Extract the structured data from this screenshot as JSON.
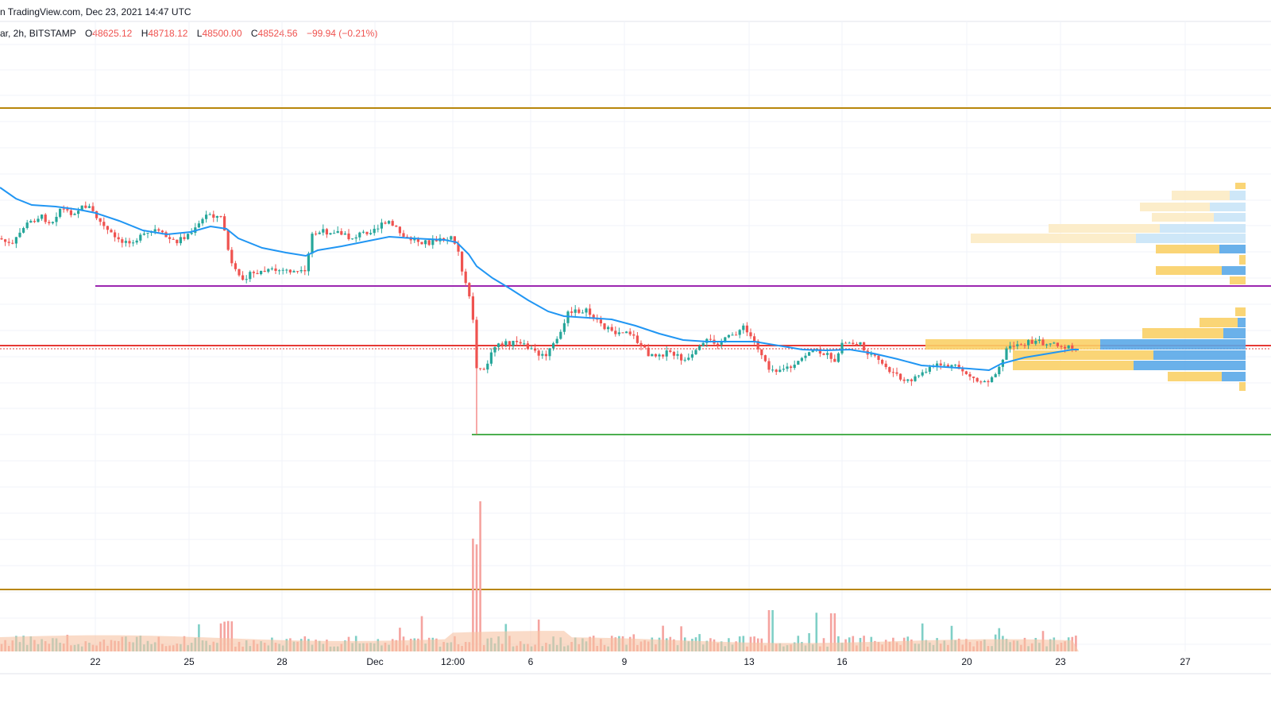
{
  "header": {
    "attribution": "n TradingView.com, Dec 23, 2021 14:47 UTC"
  },
  "legend": {
    "symbol": "ar, 2h, BITSTAMP",
    "open_label": "O",
    "open": "48625.12",
    "high_label": "H",
    "high": "48718.12",
    "low_label": "L",
    "low": "48500.00",
    "close_label": "C",
    "close": "48524.56",
    "change": "−99.94 (−0.21%)"
  },
  "colors": {
    "up": "#26a69a",
    "down": "#ef5350",
    "ma": "#2196f3",
    "level_gold": "#b8860b",
    "level_purple": "#9c27b0",
    "level_red": "#e53935",
    "level_green": "#4caf50",
    "vol_up": "#7fcfc6",
    "vol_down": "#f5a39f",
    "vol_ma": "#f7c3a3",
    "vp_yellow": "#f9d067",
    "vp_yellow_light": "#fcebc4",
    "vp_blue": "#5aa8e8",
    "vp_blue_light": "#c9e4f7"
  },
  "chart_data": {
    "type": "candlestick",
    "x_axis": {
      "tick_labels": [
        "22",
        "25",
        "28",
        "Dec",
        "12:00",
        "6",
        "9",
        "13",
        "16",
        "20",
        "23",
        "27"
      ]
    },
    "price_levels": [
      {
        "name": "resistance-high",
        "color": "gold"
      },
      {
        "name": "support-purple",
        "color": "purple"
      },
      {
        "name": "current-price",
        "color": "red"
      },
      {
        "name": "support-green",
        "color": "green"
      },
      {
        "name": "support-low",
        "color": "gold"
      }
    ],
    "indicators": [
      "moving-average",
      "volume",
      "volume-profile"
    ],
    "last_close": 48524.56
  }
}
